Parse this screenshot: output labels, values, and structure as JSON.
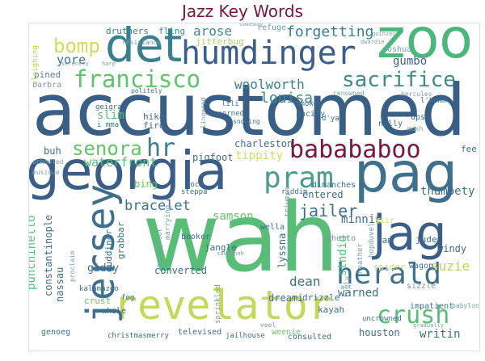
{
  "title": "Jazz Key Words",
  "words": [
    {
      "text": "zoo",
      "color": "#4bb77d"
    },
    {
      "text": "det",
      "color": "#3a7f8e"
    },
    {
      "text": "humdinger",
      "color": "#3c5e8c"
    },
    {
      "text": "bomp",
      "color": "#d2dc5a"
    },
    {
      "text": "francisco",
      "color": "#5fc46b"
    },
    {
      "text": "forgetting",
      "color": "#3a7f8e"
    },
    {
      "text": "sacrifice",
      "color": "#3e8a8c"
    },
    {
      "text": "accustomed",
      "color": "#3a5f86"
    },
    {
      "text": "georgia",
      "color": "#3b5e89"
    },
    {
      "text": "pag",
      "color": "#3e6f8c"
    },
    {
      "text": "babababoo",
      "color": "#7a1640"
    },
    {
      "text": "pram",
      "color": "#4a9e8a"
    },
    {
      "text": "wah",
      "color": "#58bd77"
    },
    {
      "text": "jag",
      "color": "#3b5e89"
    },
    {
      "text": "herald",
      "color": "#3e6f8c"
    },
    {
      "text": "revelator",
      "color": "#c6d85a"
    },
    {
      "text": "crush",
      "color": "#58bd77"
    },
    {
      "text": "jersey",
      "color": "#3e6f8c"
    },
    {
      "text": "senora",
      "color": "#64c468"
    },
    {
      "text": "hr",
      "color": "#3a7f8e"
    },
    {
      "text": "woolworth",
      "color": "#3a7f8e"
    },
    {
      "text": "louisa",
      "color": "#3e8a8c"
    },
    {
      "text": "arose",
      "color": "#3e8a8c"
    },
    {
      "text": "jitterbug",
      "color": "#a9d265"
    },
    {
      "text": "fling",
      "color": "#3e8a8c"
    },
    {
      "text": "druthers",
      "color": "#3a7f8e"
    },
    {
      "text": "yore",
      "color": "#3e6f8c"
    },
    {
      "text": "gumbo",
      "color": "#3a5f86"
    },
    {
      "text": "joshua",
      "color": "#6fa3b2"
    },
    {
      "text": "refuge",
      "color": "#6d9ea3"
    },
    {
      "text": "resistance",
      "color": "#7aa1a8"
    },
    {
      "text": "pined",
      "color": "#5a7f98"
    },
    {
      "text": "barbra",
      "color": "#7f93a8"
    },
    {
      "text": "charleston",
      "color": "#3e6f8c"
    },
    {
      "text": "tippity",
      "color": "#d2dc5a"
    },
    {
      "text": "pigfoot",
      "color": "#3e6f8c"
    },
    {
      "text": "waterfront",
      "color": "#58bd77"
    },
    {
      "text": "buh",
      "color": "#3e6f8c"
    },
    {
      "text": "slim",
      "color": "#58bd77"
    },
    {
      "text": "hike",
      "color": "#3e6f8c"
    },
    {
      "text": "fire",
      "color": "#3e6f8c"
    },
    {
      "text": "entered",
      "color": "#3e6f8c"
    },
    {
      "text": "jailer",
      "color": "#3e6f8c"
    },
    {
      "text": "minnie",
      "color": "#3e6f8c"
    },
    {
      "text": "bracelet",
      "color": "#3e6f8c"
    },
    {
      "text": "samson",
      "color": "#64c468"
    },
    {
      "text": "bing",
      "color": "#64c468"
    },
    {
      "text": "thumpety",
      "color": "#3e6f8c"
    },
    {
      "text": "fee",
      "color": "#3e6f8c"
    },
    {
      "text": "windy",
      "color": "#3e6f8c"
    },
    {
      "text": "suzie",
      "color": "#b7d55b"
    },
    {
      "text": "giddy",
      "color": "#3e6f8c"
    },
    {
      "text": "punchinello",
      "color": "#58bd77"
    },
    {
      "text": "constantinople",
      "color": "#3e6f8c"
    },
    {
      "text": "nassau",
      "color": "#3e6f8c"
    },
    {
      "text": "guddinor",
      "color": "#3e6f8c"
    },
    {
      "text": "grabbar",
      "color": "#3e6f8c"
    },
    {
      "text": "lyssna",
      "color": "#3e6f8c"
    },
    {
      "text": "dean",
      "color": "#3e6f8c"
    },
    {
      "text": "warned",
      "color": "#3e6f8c"
    },
    {
      "text": "houston",
      "color": "#3e6f8c"
    },
    {
      "text": "writin",
      "color": "#3e6f8c"
    },
    {
      "text": "converted",
      "color": "#3e6f8c"
    },
    {
      "text": "dreami",
      "color": "#3e6f8c"
    },
    {
      "text": "drizzle",
      "color": "#3e6f8c"
    },
    {
      "text": "kayah",
      "color": "#3e6f8c"
    },
    {
      "text": "consulted",
      "color": "#3e6f8c"
    },
    {
      "text": "jangle",
      "color": "#3e6f8c"
    },
    {
      "text": "ghetto",
      "color": "#7f93a8"
    },
    {
      "text": "wella",
      "color": "#3e6f8c"
    },
    {
      "text": "stndig",
      "color": "#58bd77"
    },
    {
      "text": "jude",
      "color": "#3e6f8c"
    },
    {
      "text": "wagon",
      "color": "#3e6f8c"
    },
    {
      "text": "ram",
      "color": "#3e6f8c"
    },
    {
      "text": "spider",
      "color": "#d2dc5a"
    },
    {
      "text": "sizzle",
      "color": "#7aa1a8"
    },
    {
      "text": "att",
      "color": "#7aa1a8"
    },
    {
      "text": "impatient",
      "color": "#3e6f8c"
    },
    {
      "text": "babylon",
      "color": "#7aa1a8"
    },
    {
      "text": "genoeg",
      "color": "#3e6f8c"
    },
    {
      "text": "christmasmerry",
      "color": "#3e6f8c"
    },
    {
      "text": "televised",
      "color": "#3e6f8c"
    },
    {
      "text": "jailhouse",
      "color": "#3e6f8c"
    },
    {
      "text": "weenie",
      "color": "#64c468"
    },
    {
      "text": "crust",
      "color": "#64c468"
    },
    {
      "text": "kalamazoo",
      "color": "#3e6f8c"
    },
    {
      "text": "while",
      "color": "#3e6f8c"
    },
    {
      "text": "fog",
      "color": "#3e6f8c"
    },
    {
      "text": "booker",
      "color": "#3e6f8c"
    },
    {
      "text": "dimanches",
      "color": "#3e6f8c"
    },
    {
      "text": "riddim",
      "color": "#3e6f8c"
    },
    {
      "text": "steppa",
      "color": "#3e6f8c"
    },
    {
      "text": "jock",
      "color": "#3e6f8c"
    },
    {
      "text": "scorned",
      "color": "#3e6f8c"
    },
    {
      "text": "snowing",
      "color": "#3e6f8c"
    },
    {
      "text": "pacify",
      "color": "#3e6f8c"
    },
    {
      "text": "smokey",
      "color": "#3e6f8c"
    },
    {
      "text": "nilly",
      "color": "#3e6f8c"
    },
    {
      "text": "ups",
      "color": "#3e6f8c"
    },
    {
      "text": "d'ya",
      "color": "#3e6f8c"
    },
    {
      "text": "geigra",
      "color": "#3e6f8c"
    },
    {
      "text": "i mma",
      "color": "#3e6f8c"
    },
    {
      "text": "lili",
      "color": "#3e6f8c"
    },
    {
      "text": "politely",
      "color": "#3e6f8c"
    },
    {
      "text": "l'homm",
      "color": "#3e6f8c"
    },
    {
      "text": "hercules",
      "color": "#7aa1a8"
    },
    {
      "text": "renowned",
      "color": "#7aa1a8"
    },
    {
      "text": "heather",
      "color": "#7aa1a8"
    },
    {
      "text": "blir",
      "color": "#d2dc5a"
    },
    {
      "text": "triumph",
      "color": "#7aa1a8"
    },
    {
      "text": "marrying",
      "color": "#7aa1a8"
    },
    {
      "text": "throughout",
      "color": "#7aa1a8"
    },
    {
      "text": "proclaim",
      "color": "#7aa1a8"
    },
    {
      "text": "hopduvel",
      "color": "#7aa1a8"
    },
    {
      "text": "uncrowned",
      "color": "#3e6f8c"
    },
    {
      "text": "schooled",
      "color": "#7aa1a8"
    },
    {
      "text": "musique",
      "color": "#7aa1a8"
    },
    {
      "text": "terrifically",
      "color": "#7aa1a8"
    },
    {
      "text": "sleighing",
      "color": "#b7d55b"
    },
    {
      "text": "someway",
      "color": "#7aa1a8"
    },
    {
      "text": "quinzer",
      "color": "#7aa1a8"
    },
    {
      "text": "dwardie",
      "color": "#7aa1a8"
    },
    {
      "text": "serenely",
      "color": "#7aa1a8"
    },
    {
      "text": "harp",
      "color": "#7aa1a8"
    },
    {
      "text": "gradually",
      "color": "#7aa1a8"
    },
    {
      "text": "veel",
      "color": "#7aa1a8"
    },
    {
      "text": "sprinkled",
      "color": "#7aa1a8"
    },
    {
      "text": "fully",
      "color": "#7aa1a8"
    },
    {
      "text": "savannah",
      "color": "#7aa1a8"
    },
    {
      "text": "mush",
      "color": "#7aa1a8"
    },
    {
      "text": "lingered",
      "color": "#7aa1a8"
    },
    {
      "text": "slim",
      "color": "#58bd77"
    }
  ]
}
